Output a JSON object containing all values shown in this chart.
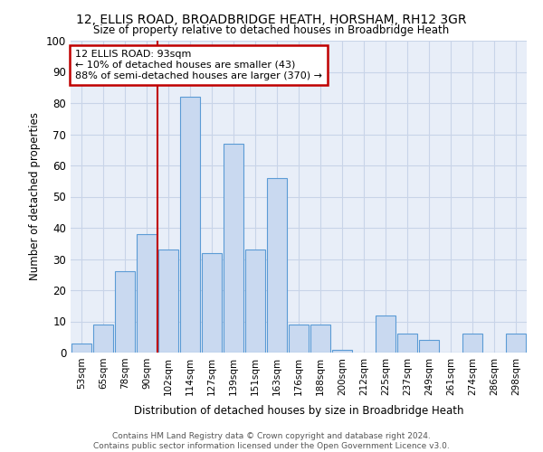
{
  "title1": "12, ELLIS ROAD, BROADBRIDGE HEATH, HORSHAM, RH12 3GR",
  "title2": "Size of property relative to detached houses in Broadbridge Heath",
  "xlabel": "Distribution of detached houses by size in Broadbridge Heath",
  "ylabel": "Number of detached properties",
  "categories": [
    "53sqm",
    "65sqm",
    "78sqm",
    "90sqm",
    "102sqm",
    "114sqm",
    "127sqm",
    "139sqm",
    "151sqm",
    "163sqm",
    "176sqm",
    "188sqm",
    "200sqm",
    "212sqm",
    "225sqm",
    "237sqm",
    "249sqm",
    "261sqm",
    "274sqm",
    "286sqm",
    "298sqm"
  ],
  "values": [
    3,
    9,
    26,
    38,
    33,
    82,
    32,
    67,
    33,
    56,
    9,
    9,
    1,
    0,
    12,
    6,
    4,
    0,
    6,
    0,
    6
  ],
  "bar_color": "#c9d9f0",
  "bar_edge_color": "#5b9bd5",
  "bar_linewidth": 0.8,
  "vline_x": 3.5,
  "vline_color": "#c00000",
  "annotation_line1": "12 ELLIS ROAD: 93sqm",
  "annotation_line2": "← 10% of detached houses are smaller (43)",
  "annotation_line3": "88% of semi-detached houses are larger (370) →",
  "annotation_box_color": "#c00000",
  "ylim": [
    0,
    100
  ],
  "yticks": [
    0,
    10,
    20,
    30,
    40,
    50,
    60,
    70,
    80,
    90,
    100
  ],
  "background_color": "#ffffff",
  "plot_bg_color": "#e8eef8",
  "grid_color": "#c8d4e8",
  "footnote": "Contains HM Land Registry data © Crown copyright and database right 2024.\nContains public sector information licensed under the Open Government Licence v3.0."
}
